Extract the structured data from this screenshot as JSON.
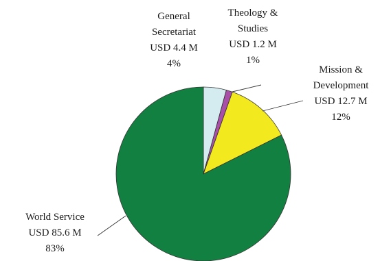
{
  "chart_data": {
    "type": "pie",
    "title": "",
    "slices": [
      {
        "name": "General Secretariat",
        "label_lines": [
          "General",
          "Secretariat"
        ],
        "amount": "USD 4.4 M",
        "value": 4.4,
        "percent_label": "4%",
        "color": "#d4ecf0"
      },
      {
        "name": "Theology & Studies",
        "label_lines": [
          "Theology &",
          "Studies"
        ],
        "amount": "USD 1.2 M",
        "value": 1.2,
        "percent_label": "1%",
        "color": "#a850a8"
      },
      {
        "name": "Mission & Development",
        "label_lines": [
          "Mission &",
          "Development"
        ],
        "amount": "USD 12.7 M",
        "value": 12.7,
        "percent_label": "12%",
        "color": "#f2ea1e"
      },
      {
        "name": "World Service",
        "label_lines": [
          "World Service"
        ],
        "amount": "USD 85.6 M",
        "value": 85.6,
        "percent_label": "83%",
        "color": "#128040"
      }
    ]
  }
}
